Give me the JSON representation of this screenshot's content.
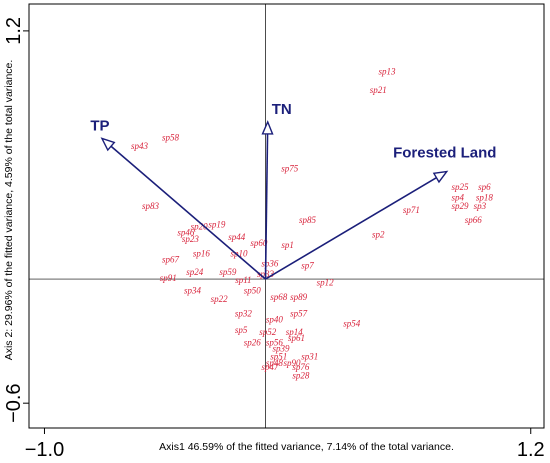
{
  "chart_data": {
    "type": "scatter",
    "title": "",
    "xlabel": "Axis1  46.59% of the fitted variance, 7.14% of the total variance.",
    "ylabel": "Axis 2: 29.96% of the fitted variance, 4.59% of the total variance.",
    "xlim": [
      -1.07,
      1.26
    ],
    "ylim": [
      -0.72,
      1.33
    ],
    "x_ticks": [
      {
        "value": -1.0,
        "label": "−1.0"
      },
      {
        "value": 1.2,
        "label": "1.2"
      }
    ],
    "y_ticks": [
      {
        "value": 1.2,
        "label": "1.2"
      },
      {
        "value": -0.6,
        "label": "−0.6"
      }
    ],
    "vectors": [
      {
        "label": "TP",
        "x": -0.74,
        "y": 0.68
      },
      {
        "label": "TN",
        "x": 0.01,
        "y": 0.76
      },
      {
        "label": "Forested Land",
        "x": 0.82,
        "y": 0.52
      }
    ],
    "points": [
      {
        "label": "sp13",
        "x": 0.55,
        "y": 1.0
      },
      {
        "label": "sp21",
        "x": 0.51,
        "y": 0.91
      },
      {
        "label": "sp58",
        "x": -0.43,
        "y": 0.68
      },
      {
        "label": "sp43",
        "x": -0.57,
        "y": 0.64
      },
      {
        "label": "sp75",
        "x": 0.11,
        "y": 0.53
      },
      {
        "label": "sp25",
        "x": 0.88,
        "y": 0.44
      },
      {
        "label": "sp6",
        "x": 0.99,
        "y": 0.44
      },
      {
        "label": "sp4",
        "x": 0.87,
        "y": 0.39
      },
      {
        "label": "sp18",
        "x": 0.99,
        "y": 0.39
      },
      {
        "label": "sp29",
        "x": 0.88,
        "y": 0.35
      },
      {
        "label": "sp3",
        "x": 0.97,
        "y": 0.35
      },
      {
        "label": "sp71",
        "x": 0.66,
        "y": 0.33
      },
      {
        "label": "sp66",
        "x": 0.94,
        "y": 0.28
      },
      {
        "label": "sp83",
        "x": -0.52,
        "y": 0.35
      },
      {
        "label": "sp85",
        "x": 0.19,
        "y": 0.28
      },
      {
        "label": "sp19",
        "x": -0.22,
        "y": 0.26
      },
      {
        "label": "sp20",
        "x": -0.3,
        "y": 0.25
      },
      {
        "label": "sp46",
        "x": -0.36,
        "y": 0.22
      },
      {
        "label": "sp2",
        "x": 0.51,
        "y": 0.21
      },
      {
        "label": "sp44",
        "x": -0.13,
        "y": 0.2
      },
      {
        "label": "sp23",
        "x": -0.34,
        "y": 0.19
      },
      {
        "label": "sp60",
        "x": -0.03,
        "y": 0.17
      },
      {
        "label": "sp1",
        "x": 0.1,
        "y": 0.16
      },
      {
        "label": "sp16",
        "x": -0.29,
        "y": 0.12
      },
      {
        "label": "sp10",
        "x": -0.12,
        "y": 0.12
      },
      {
        "label": "sp67",
        "x": -0.43,
        "y": 0.09
      },
      {
        "label": "sp36",
        "x": 0.02,
        "y": 0.07
      },
      {
        "label": "sp7",
        "x": 0.19,
        "y": 0.06
      },
      {
        "label": "sp24",
        "x": -0.32,
        "y": 0.03
      },
      {
        "label": "sp59",
        "x": -0.17,
        "y": 0.03
      },
      {
        "label": "sp33",
        "x": 0.0,
        "y": 0.02
      },
      {
        "label": "sp91",
        "x": -0.44,
        "y": 0.0
      },
      {
        "label": "sp11",
        "x": -0.1,
        "y": -0.01
      },
      {
        "label": "sp12",
        "x": 0.27,
        "y": -0.02
      },
      {
        "label": "sp34",
        "x": -0.33,
        "y": -0.06
      },
      {
        "label": "sp50",
        "x": -0.06,
        "y": -0.06
      },
      {
        "label": "sp68",
        "x": 0.06,
        "y": -0.09
      },
      {
        "label": "sp89",
        "x": 0.15,
        "y": -0.09
      },
      {
        "label": "sp22",
        "x": -0.21,
        "y": -0.1
      },
      {
        "label": "sp32",
        "x": -0.1,
        "y": -0.17
      },
      {
        "label": "sp57",
        "x": 0.15,
        "y": -0.17
      },
      {
        "label": "sp40",
        "x": 0.04,
        "y": -0.2
      },
      {
        "label": "sp54",
        "x": 0.39,
        "y": -0.22
      },
      {
        "label": "sp5",
        "x": -0.11,
        "y": -0.25
      },
      {
        "label": "sp52",
        "x": 0.01,
        "y": -0.26
      },
      {
        "label": "sp14",
        "x": 0.13,
        "y": -0.26
      },
      {
        "label": "sp61",
        "x": 0.14,
        "y": -0.29
      },
      {
        "label": "sp26",
        "x": -0.06,
        "y": -0.31
      },
      {
        "label": "sp56",
        "x": 0.04,
        "y": -0.31
      },
      {
        "label": "sp39",
        "x": 0.07,
        "y": -0.34
      },
      {
        "label": "sp51",
        "x": 0.06,
        "y": -0.38
      },
      {
        "label": "sp31",
        "x": 0.2,
        "y": -0.38
      },
      {
        "label": "sp48",
        "x": 0.04,
        "y": -0.41
      },
      {
        "label": "sp90",
        "x": 0.12,
        "y": -0.41
      },
      {
        "label": "sp47",
        "x": 0.02,
        "y": -0.43
      },
      {
        "label": "sp76",
        "x": 0.16,
        "y": -0.43
      },
      {
        "label": "sp28",
        "x": 0.16,
        "y": -0.47
      }
    ]
  }
}
